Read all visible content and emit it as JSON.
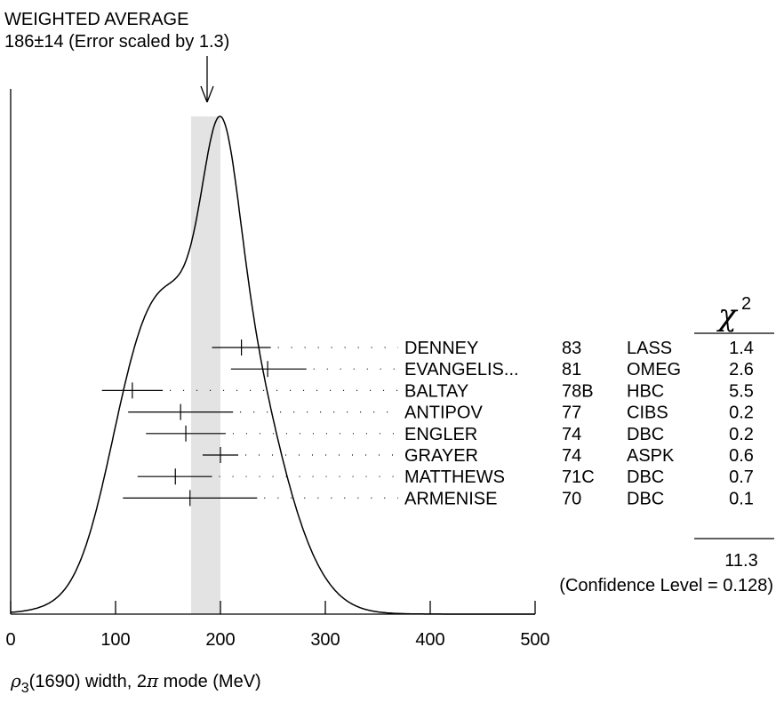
{
  "chart_data": {
    "type": "ideogram",
    "header": {
      "title": "WEIGHTED AVERAGE",
      "value": "186±14 (Error scaled by 1.3)"
    },
    "weighted_average": {
      "value": 186,
      "error": 14
    },
    "xlabel": {
      "rho": "ρ",
      "sub": "3",
      "mid": "(1690) width, 2",
      "pi": "π",
      "end": " mode (MeV)"
    },
    "xlim": [
      0,
      500
    ],
    "x_ticks": [
      {
        "value": 0,
        "label": "0"
      },
      {
        "value": 100,
        "label": "100"
      },
      {
        "value": 200,
        "label": "200"
      },
      {
        "value": 300,
        "label": "300"
      },
      {
        "value": 400,
        "label": "400"
      },
      {
        "value": 500,
        "label": "500"
      }
    ],
    "chi2_header": {
      "symbol": "χ",
      "power": "2"
    },
    "measurements": [
      {
        "author": "DENNEY",
        "year": "83",
        "tech": "LASS",
        "chi2": "1.4",
        "value": 220,
        "low": 192,
        "high": 248
      },
      {
        "author": "EVANGELIS...",
        "year": "81",
        "tech": "OMEG",
        "chi2": "2.6",
        "value": 245,
        "low": 210,
        "high": 282
      },
      {
        "author": "BALTAY",
        "year": "78B",
        "tech": "HBC",
        "chi2": "5.5",
        "value": 116,
        "low": 87,
        "high": 145
      },
      {
        "author": "ANTIPOV",
        "year": "77",
        "tech": "CIBS",
        "chi2": "0.2",
        "value": 162,
        "low": 112,
        "high": 212
      },
      {
        "author": "ENGLER",
        "year": "74",
        "tech": "DBC",
        "chi2": "0.2",
        "value": 167,
        "low": 129,
        "high": 205
      },
      {
        "author": "GRAYER",
        "year": "74",
        "tech": "ASPK",
        "chi2": "0.6",
        "value": 200,
        "low": 183,
        "high": 217
      },
      {
        "author": "MATTHEWS",
        "year": "71C",
        "tech": "DBC",
        "chi2": "0.7",
        "value": 157,
        "low": 121,
        "high": 192
      },
      {
        "author": "ARMENISE",
        "year": "70",
        "tech": "DBC",
        "chi2": "0.1",
        "value": 171,
        "low": 107,
        "high": 235
      }
    ],
    "chi2_total": "11.3",
    "confidence_level": "(Confidence Level = 0.128)"
  }
}
